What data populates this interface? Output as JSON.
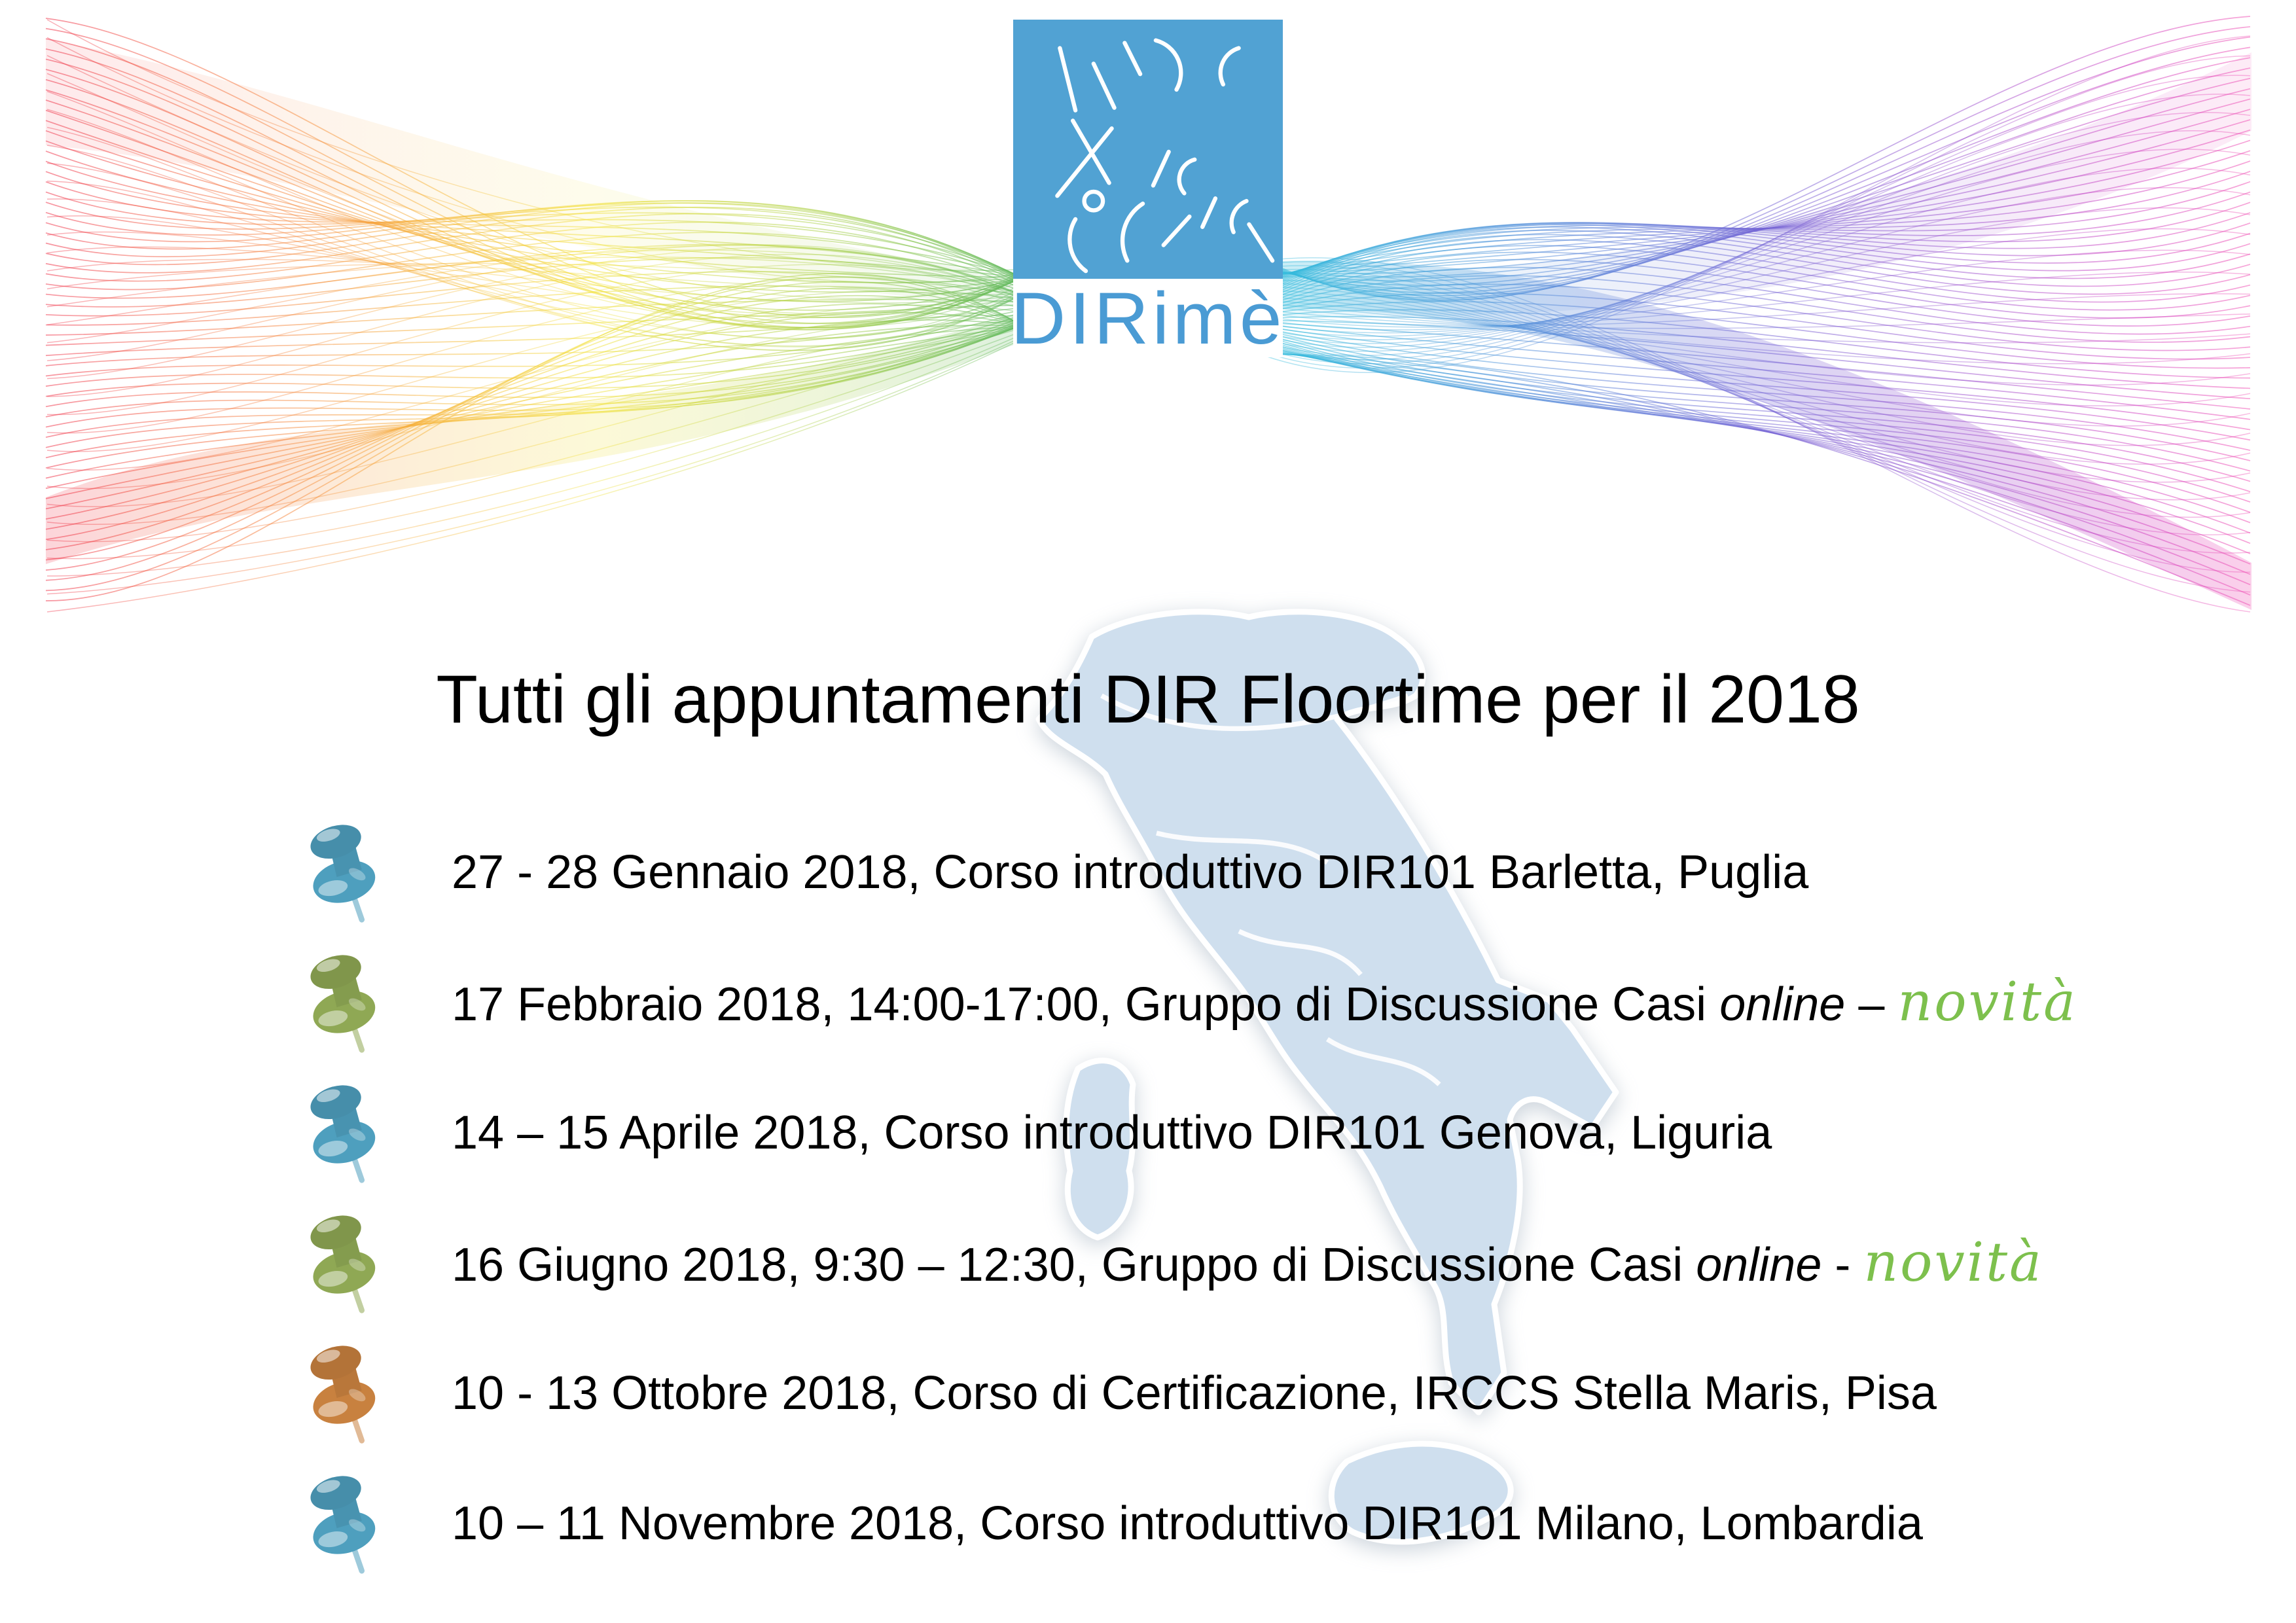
{
  "page": {
    "title": "Tutti gli appuntamenti DIR Floortime per il 2018"
  },
  "logo": {
    "wordmark": "DIRimè"
  },
  "colors": {
    "logo_blue": "#51a2d3",
    "wordmark_blue": "#4a9bd4",
    "novita_green": "#7dc04d",
    "map_fill": "#cfdfee",
    "pin_blue": "#4e9fbe",
    "pin_green": "#8fa854",
    "pin_orange": "#c8813f"
  },
  "events": [
    {
      "pin_color": "#4e9fbe",
      "segments": [
        {
          "text": "27 - 28 Gennaio 2018, Corso introduttivo DIR101 Barletta, Puglia",
          "style": "normal"
        }
      ]
    },
    {
      "pin_color": "#8fa854",
      "segments": [
        {
          "text": "17 Febbraio 2018, 14:00-17:00, Gruppo di Discussione Casi ",
          "style": "normal"
        },
        {
          "text": "online",
          "style": "italic"
        },
        {
          "text": " – ",
          "style": "normal"
        },
        {
          "text": "novità",
          "style": "novita"
        }
      ]
    },
    {
      "pin_color": "#4e9fbe",
      "segments": [
        {
          "text": "14 – 15 Aprile 2018, Corso introduttivo DIR101 Genova, Liguria",
          "style": "normal"
        }
      ]
    },
    {
      "pin_color": "#8fa854",
      "segments": [
        {
          "text": "16 Giugno 2018, 9:30 – 12:30, Gruppo di Discussione Casi ",
          "style": "normal"
        },
        {
          "text": "online",
          "style": "italic"
        },
        {
          "text": " - ",
          "style": "normal"
        },
        {
          "text": "novità",
          "style": "novita"
        }
      ]
    },
    {
      "pin_color": "#c8813f",
      "segments": [
        {
          "text": "10 - 13 Ottobre 2018, Corso di Certificazione, IRCCS Stella Maris, Pisa",
          "style": "normal"
        }
      ]
    },
    {
      "pin_color": "#4e9fbe",
      "segments": [
        {
          "text": "10 – 11 Novembre 2018, Corso introduttivo DIR101 Milano, Lombardia",
          "style": "normal"
        }
      ]
    }
  ]
}
